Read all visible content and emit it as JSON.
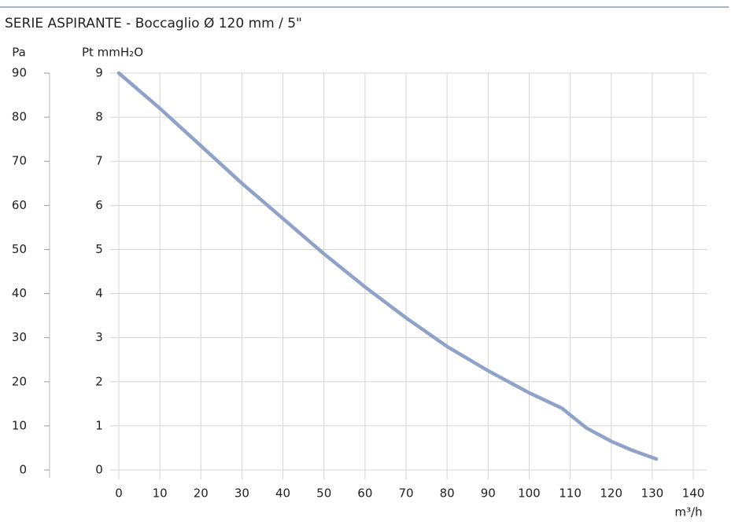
{
  "chart_data": {
    "type": "line",
    "title": "SERIE ASPIRANTE  - Boccaglio Ø 120 mm / 5\"",
    "y_label": "Pa",
    "y2_label": "Pt mmH₂O",
    "x_label": "m³/h",
    "x": [
      0,
      10,
      20,
      30,
      40,
      50,
      60,
      70,
      80,
      90,
      100,
      108,
      114,
      120,
      125,
      131
    ],
    "series": [
      {
        "color": "#8fa3c9",
        "values": [
          90,
          82,
          73.5,
          65,
          57,
          49,
          41.5,
          34.5,
          28,
          22.5,
          17.5,
          14,
          9.5,
          6.5,
          4.5,
          2.5
        ]
      }
    ],
    "xlim": [
      0,
      140
    ],
    "xticks": [
      0,
      10,
      20,
      30,
      40,
      50,
      60,
      70,
      80,
      90,
      100,
      110,
      120,
      130,
      140
    ],
    "ylim": [
      0,
      90
    ],
    "yticks": [
      0,
      10,
      20,
      30,
      40,
      50,
      60,
      70,
      80,
      90
    ],
    "y2lim": [
      0,
      9
    ],
    "y2ticks": [
      0,
      1,
      2,
      3,
      4,
      5,
      6,
      7,
      8,
      9
    ],
    "grid": true
  }
}
